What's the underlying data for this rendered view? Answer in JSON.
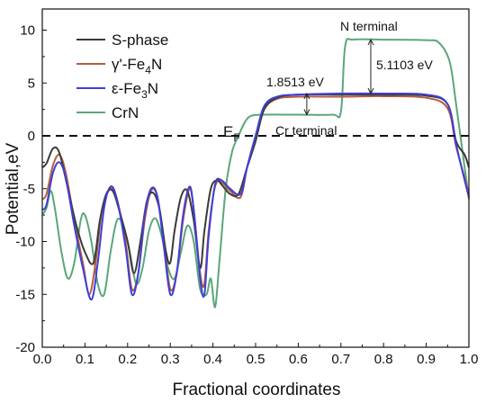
{
  "chart_data": {
    "type": "line",
    "xlabel": "Fractional coordinates",
    "ylabel": "Potential,eV",
    "xlim": [
      0.0,
      1.0
    ],
    "ylim": [
      -20,
      12
    ],
    "xticks": [
      "0.0",
      "0.1",
      "0.2",
      "0.3",
      "0.4",
      "0.5",
      "0.6",
      "0.7",
      "0.8",
      "0.9",
      "1.0"
    ],
    "yticks": [
      "-20",
      "-15",
      "-10",
      "-5",
      "0",
      "5",
      "10"
    ],
    "legend_position": "top-left",
    "fermi_level": {
      "y": 0,
      "label": "E",
      "sub": "F"
    },
    "series": [
      {
        "name": "S-phase",
        "color": "#3a3a3a",
        "points": [
          [
            0,
            -3.0
          ],
          [
            0.01,
            -2.6
          ],
          [
            0.025,
            -1.2
          ],
          [
            0.04,
            -1.6
          ],
          [
            0.06,
            -5
          ],
          [
            0.08,
            -8.5
          ],
          [
            0.1,
            -11
          ],
          [
            0.12,
            -12
          ],
          [
            0.135,
            -8
          ],
          [
            0.15,
            -5.5
          ],
          [
            0.165,
            -5.2
          ],
          [
            0.18,
            -7
          ],
          [
            0.2,
            -10
          ],
          [
            0.215,
            -13
          ],
          [
            0.23,
            -10
          ],
          [
            0.245,
            -6.2
          ],
          [
            0.26,
            -5.4
          ],
          [
            0.275,
            -7
          ],
          [
            0.29,
            -11
          ],
          [
            0.3,
            -12
          ],
          [
            0.31,
            -9
          ],
          [
            0.325,
            -5.8
          ],
          [
            0.34,
            -5.2
          ],
          [
            0.355,
            -8
          ],
          [
            0.37,
            -12.5
          ],
          [
            0.38,
            -9
          ],
          [
            0.395,
            -5
          ],
          [
            0.41,
            -4.2
          ],
          [
            0.42,
            -4.6
          ],
          [
            0.44,
            -5.5
          ],
          [
            0.46,
            -5.5
          ],
          [
            0.48,
            -3
          ],
          [
            0.5,
            -0.5
          ],
          [
            0.52,
            2.5
          ],
          [
            0.55,
            3.6
          ],
          [
            0.6,
            3.9
          ],
          [
            0.7,
            3.9
          ],
          [
            0.8,
            3.9
          ],
          [
            0.9,
            3.8
          ],
          [
            0.95,
            3.0
          ],
          [
            0.97,
            -0.5
          ],
          [
            0.99,
            -1.8
          ],
          [
            1.0,
            -3.0
          ]
        ]
      },
      {
        "name": "γ'-Fe4N",
        "color": "#b35d3c",
        "points": [
          [
            0,
            -6.0
          ],
          [
            0.01,
            -5.5
          ],
          [
            0.025,
            -2.8
          ],
          [
            0.04,
            -1.8
          ],
          [
            0.055,
            -3.5
          ],
          [
            0.075,
            -8
          ],
          [
            0.095,
            -12
          ],
          [
            0.11,
            -15
          ],
          [
            0.125,
            -12
          ],
          [
            0.14,
            -7
          ],
          [
            0.16,
            -5
          ],
          [
            0.175,
            -6
          ],
          [
            0.195,
            -10
          ],
          [
            0.21,
            -14.5
          ],
          [
            0.225,
            -13
          ],
          [
            0.24,
            -8
          ],
          [
            0.255,
            -5.2
          ],
          [
            0.27,
            -5.8
          ],
          [
            0.285,
            -10
          ],
          [
            0.3,
            -14.5
          ],
          [
            0.315,
            -13
          ],
          [
            0.33,
            -8
          ],
          [
            0.345,
            -5
          ],
          [
            0.355,
            -7
          ],
          [
            0.37,
            -13
          ],
          [
            0.38,
            -14
          ],
          [
            0.39,
            -9
          ],
          [
            0.405,
            -4.8
          ],
          [
            0.42,
            -4.4
          ],
          [
            0.44,
            -5.2
          ],
          [
            0.465,
            -5.8
          ],
          [
            0.48,
            -3
          ],
          [
            0.5,
            0
          ],
          [
            0.52,
            2.5
          ],
          [
            0.55,
            3.5
          ],
          [
            0.6,
            3.7
          ],
          [
            0.7,
            3.7
          ],
          [
            0.8,
            3.75
          ],
          [
            0.9,
            3.6
          ],
          [
            0.95,
            2.6
          ],
          [
            0.97,
            -1
          ],
          [
            0.99,
            -4
          ],
          [
            1.0,
            -5.5
          ]
        ]
      },
      {
        "name": "ε-Fe3N",
        "color": "#3f3fd8",
        "points": [
          [
            0,
            -7.0
          ],
          [
            0.01,
            -6.5
          ],
          [
            0.025,
            -3.5
          ],
          [
            0.04,
            -2.5
          ],
          [
            0.055,
            -4
          ],
          [
            0.075,
            -8.5
          ],
          [
            0.095,
            -12.5
          ],
          [
            0.115,
            -15.5
          ],
          [
            0.13,
            -12
          ],
          [
            0.145,
            -6.8
          ],
          [
            0.16,
            -4.8
          ],
          [
            0.175,
            -6
          ],
          [
            0.195,
            -10.5
          ],
          [
            0.21,
            -15
          ],
          [
            0.225,
            -13
          ],
          [
            0.24,
            -7.5
          ],
          [
            0.255,
            -5
          ],
          [
            0.27,
            -5.8
          ],
          [
            0.285,
            -10.5
          ],
          [
            0.3,
            -15
          ],
          [
            0.315,
            -13
          ],
          [
            0.33,
            -7.5
          ],
          [
            0.345,
            -4.8
          ],
          [
            0.355,
            -7
          ],
          [
            0.37,
            -13.5
          ],
          [
            0.38,
            -15
          ],
          [
            0.39,
            -9.5
          ],
          [
            0.405,
            -4.6
          ],
          [
            0.42,
            -4.2
          ],
          [
            0.44,
            -5
          ],
          [
            0.465,
            -5.5
          ],
          [
            0.48,
            -3
          ],
          [
            0.5,
            0
          ],
          [
            0.52,
            2.8
          ],
          [
            0.55,
            3.7
          ],
          [
            0.6,
            3.9
          ],
          [
            0.7,
            4.0
          ],
          [
            0.8,
            4.0
          ],
          [
            0.9,
            3.9
          ],
          [
            0.95,
            3.0
          ],
          [
            0.97,
            -0.8
          ],
          [
            0.99,
            -4.2
          ],
          [
            1.0,
            -5.8
          ]
        ]
      },
      {
        "name": "CrN",
        "color": "#5aa77a",
        "points": [
          [
            0,
            -7.5
          ],
          [
            0.01,
            -6.8
          ],
          [
            0.02,
            -5.2
          ],
          [
            0.03,
            -7
          ],
          [
            0.045,
            -11
          ],
          [
            0.06,
            -13.5
          ],
          [
            0.075,
            -12
          ],
          [
            0.09,
            -8
          ],
          [
            0.1,
            -7.5
          ],
          [
            0.115,
            -10
          ],
          [
            0.13,
            -14
          ],
          [
            0.145,
            -15
          ],
          [
            0.16,
            -11
          ],
          [
            0.175,
            -8
          ],
          [
            0.19,
            -8.5
          ],
          [
            0.205,
            -11
          ],
          [
            0.22,
            -14
          ],
          [
            0.235,
            -12.5
          ],
          [
            0.25,
            -9
          ],
          [
            0.265,
            -7.8
          ],
          [
            0.28,
            -9.5
          ],
          [
            0.295,
            -12.5
          ],
          [
            0.31,
            -13.5
          ],
          [
            0.325,
            -11
          ],
          [
            0.34,
            -8.5
          ],
          [
            0.355,
            -10
          ],
          [
            0.37,
            -14.5
          ],
          [
            0.385,
            -15
          ],
          [
            0.395,
            -13.5
          ],
          [
            0.405,
            -16.2
          ],
          [
            0.415,
            -12
          ],
          [
            0.43,
            -5
          ],
          [
            0.445,
            -1.5
          ],
          [
            0.46,
            0
          ],
          [
            0.475,
            1.3
          ],
          [
            0.49,
            1.9
          ],
          [
            0.52,
            2.0
          ],
          [
            0.6,
            2.0
          ],
          [
            0.68,
            2.0
          ],
          [
            0.7,
            2.3
          ],
          [
            0.71,
            8.5
          ],
          [
            0.73,
            9.1
          ],
          [
            0.8,
            9.1
          ],
          [
            0.9,
            9.05
          ],
          [
            0.93,
            8.8
          ],
          [
            0.955,
            7
          ],
          [
            0.97,
            3
          ],
          [
            0.99,
            -3
          ],
          [
            1.0,
            -6.0
          ]
        ]
      }
    ],
    "annotations": {
      "n_terminal": "N terminal",
      "cr_terminal": "Cr terminal",
      "diff1": "1.8513 eV",
      "diff2": "5.1103 eV"
    }
  }
}
